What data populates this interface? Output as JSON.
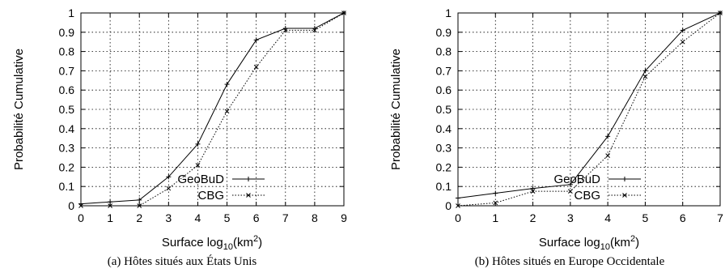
{
  "chart_data": [
    {
      "type": "line",
      "caption": "(a)  Hôtes situés aux États Unis",
      "xlabel": "Surface log",
      "xlabel_sub": "10",
      "xlabel_tail": "(km",
      "xlabel_sup": "2",
      "xlabel_end": ")",
      "ylabel": "Probabilité Cumulative",
      "xlim": [
        0,
        9
      ],
      "ylim": [
        0,
        1
      ],
      "xticks": [
        "0",
        "1",
        "2",
        "3",
        "4",
        "5",
        "6",
        "7",
        "8",
        "9"
      ],
      "yticks": [
        "0",
        "0.1",
        "0.2",
        "0.3",
        "0.4",
        "0.5",
        "0.6",
        "0.7",
        "0.8",
        "0.9",
        "1"
      ],
      "grid": true,
      "legend_position": "bottom-right",
      "series": [
        {
          "name": "GeoBuD",
          "style": "solid",
          "marker": "plus",
          "x": [
            0,
            1,
            2,
            3,
            4,
            5,
            6,
            7,
            8,
            9
          ],
          "y": [
            0.01,
            0.02,
            0.03,
            0.15,
            0.32,
            0.63,
            0.86,
            0.92,
            0.92,
            1.0
          ]
        },
        {
          "name": "CBG",
          "style": "dotted",
          "marker": "cross",
          "x": [
            0,
            1,
            2,
            3,
            4,
            5,
            6,
            7,
            8,
            9
          ],
          "y": [
            0.0,
            0.0,
            0.0,
            0.09,
            0.21,
            0.49,
            0.72,
            0.91,
            0.91,
            1.0
          ]
        }
      ]
    },
    {
      "type": "line",
      "caption": "(b)  Hôtes situés en Europe Occidentale",
      "xlabel": "Surface log",
      "xlabel_sub": "10",
      "xlabel_tail": "(km",
      "xlabel_sup": "2",
      "xlabel_end": ")",
      "ylabel": "Probabilité Cumulative",
      "xlim": [
        0,
        7
      ],
      "ylim": [
        0,
        1
      ],
      "xticks": [
        "0",
        "1",
        "2",
        "3",
        "4",
        "5",
        "6",
        "7"
      ],
      "yticks": [
        "0",
        "0.1",
        "0.2",
        "0.3",
        "0.4",
        "0.5",
        "0.6",
        "0.7",
        "0.8",
        "0.9",
        "1"
      ],
      "grid": true,
      "legend_position": "bottom-right",
      "series": [
        {
          "name": "GeoBuD",
          "style": "solid",
          "marker": "plus",
          "x": [
            0,
            1,
            2,
            3,
            4,
            5,
            6,
            7
          ],
          "y": [
            0.04,
            0.065,
            0.09,
            0.11,
            0.36,
            0.7,
            0.91,
            1.0
          ]
        },
        {
          "name": "CBG",
          "style": "dotted",
          "marker": "cross",
          "x": [
            0,
            1,
            2,
            3,
            4,
            5,
            6,
            7
          ],
          "y": [
            0.0,
            0.015,
            0.075,
            0.075,
            0.26,
            0.67,
            0.85,
            1.0
          ]
        }
      ]
    }
  ]
}
